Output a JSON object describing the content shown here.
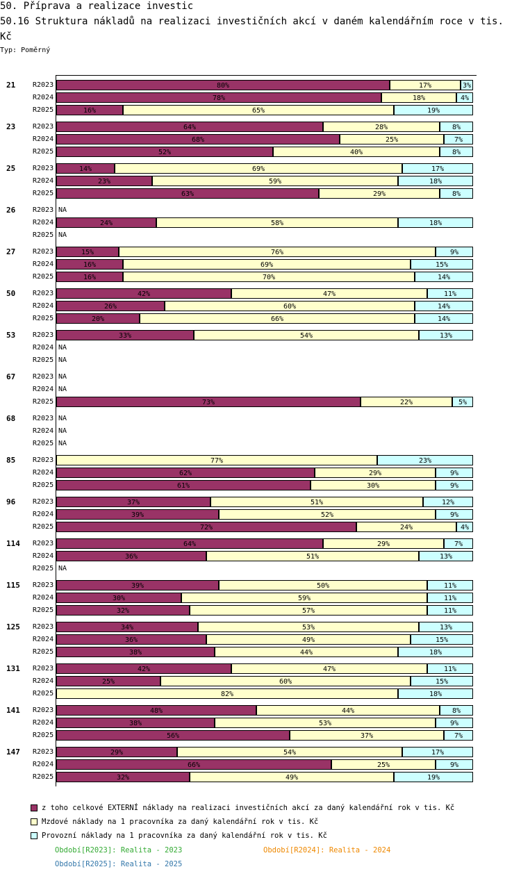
{
  "header": {
    "title": "50. Příprava a realizace investic",
    "subtitle": "50.16 Struktura nákladů na realizaci investičních akcí v daném kalendářním roce v tis. Kč",
    "type_label": "Typ: Poměrný"
  },
  "colors": {
    "externi": "#993366",
    "mzdove": "#ffffcc",
    "provozni": "#ccffff"
  },
  "legend": [
    {
      "label": "z toho celkové EXTERNÍ náklady na realizaci investičních akcí za daný kalendářní rok v tis. Kč",
      "color": "#993366"
    },
    {
      "label": "Mzdové náklady na 1 pracovníka za daný kalendářní rok v tis. Kč",
      "color": "#ffffcc"
    },
    {
      "label": "Provozní náklady na 1 pracovníka za daný kalendářní rok v tis. Kč",
      "color": "#ccffff"
    }
  ],
  "periods": [
    {
      "label": "Období[R2023]: Realita - 2023",
      "color": "#33aa33"
    },
    {
      "label": "Období[R2024]: Realita - 2024",
      "color": "#ee8800"
    },
    {
      "label": "Období[R2025]: Realita - 2025",
      "color": "#3377aa"
    }
  ],
  "chart_data": {
    "type": "bar",
    "orientation": "horizontal",
    "stacked": "percent",
    "title": "50.16 Struktura nákladů na realizaci investičních akcí v daném kalendářním roce v tis. Kč",
    "series_names": [
      "z toho celkové EXTERNÍ náklady na realizaci investičních akcí za daný kalendářní rok v tis. Kč",
      "Mzdové náklady na 1 pracovníka za daný kalendářní rok v tis. Kč",
      "Provozní náklady na 1 pracovníka za daný kalendářní rok v tis. Kč"
    ],
    "na_label": "NA",
    "xlim": [
      0,
      100
    ],
    "groups": [
      {
        "id": "21",
        "rows": [
          {
            "period": "R2023",
            "values": [
              80,
              17,
              3
            ]
          },
          {
            "period": "R2024",
            "values": [
              78,
              18,
              4
            ]
          },
          {
            "period": "R2025",
            "values": [
              16,
              65,
              19
            ]
          }
        ]
      },
      {
        "id": "23",
        "rows": [
          {
            "period": "R2023",
            "values": [
              64,
              28,
              8
            ]
          },
          {
            "period": "R2024",
            "values": [
              68,
              25,
              7
            ]
          },
          {
            "period": "R2025",
            "values": [
              52,
              40,
              8
            ]
          }
        ]
      },
      {
        "id": "25",
        "rows": [
          {
            "period": "R2023",
            "values": [
              14,
              69,
              17
            ]
          },
          {
            "period": "R2024",
            "values": [
              23,
              59,
              18
            ]
          },
          {
            "period": "R2025",
            "values": [
              63,
              29,
              8
            ]
          }
        ]
      },
      {
        "id": "26",
        "rows": [
          {
            "period": "R2023",
            "values": null
          },
          {
            "period": "R2024",
            "values": [
              24,
              58,
              18
            ]
          },
          {
            "period": "R2025",
            "values": null
          }
        ]
      },
      {
        "id": "27",
        "rows": [
          {
            "period": "R2023",
            "values": [
              15,
              76,
              9
            ]
          },
          {
            "period": "R2024",
            "values": [
              16,
              69,
              15
            ]
          },
          {
            "period": "R2025",
            "values": [
              16,
              70,
              14
            ]
          }
        ]
      },
      {
        "id": "50",
        "rows": [
          {
            "period": "R2023",
            "values": [
              42,
              47,
              11
            ]
          },
          {
            "period": "R2024",
            "values": [
              26,
              60,
              14
            ]
          },
          {
            "period": "R2025",
            "values": [
              20,
              66,
              14
            ]
          }
        ]
      },
      {
        "id": "53",
        "rows": [
          {
            "period": "R2023",
            "values": [
              33,
              54,
              13
            ]
          },
          {
            "period": "R2024",
            "values": null
          },
          {
            "period": "R2025",
            "values": null
          }
        ]
      },
      {
        "id": "67",
        "rows": [
          {
            "period": "R2023",
            "values": null
          },
          {
            "period": "R2024",
            "values": null
          },
          {
            "period": "R2025",
            "values": [
              73,
              22,
              5
            ]
          }
        ]
      },
      {
        "id": "68",
        "rows": [
          {
            "period": "R2023",
            "values": null
          },
          {
            "period": "R2024",
            "values": null
          },
          {
            "period": "R2025",
            "values": null
          }
        ]
      },
      {
        "id": "85",
        "rows": [
          {
            "period": "R2023",
            "values": [
              0,
              77,
              23
            ]
          },
          {
            "period": "R2024",
            "values": [
              62,
              29,
              9
            ]
          },
          {
            "period": "R2025",
            "values": [
              61,
              30,
              9
            ]
          }
        ]
      },
      {
        "id": "96",
        "rows": [
          {
            "period": "R2023",
            "values": [
              37,
              51,
              12
            ]
          },
          {
            "period": "R2024",
            "values": [
              39,
              52,
              9
            ]
          },
          {
            "period": "R2025",
            "values": [
              72,
              24,
              4
            ]
          }
        ]
      },
      {
        "id": "114",
        "rows": [
          {
            "period": "R2023",
            "values": [
              64,
              29,
              7
            ]
          },
          {
            "period": "R2024",
            "values": [
              36,
              51,
              13
            ]
          },
          {
            "period": "R2025",
            "values": null
          }
        ]
      },
      {
        "id": "115",
        "rows": [
          {
            "period": "R2023",
            "values": [
              39,
              50,
              11
            ]
          },
          {
            "period": "R2024",
            "values": [
              30,
              59,
              11
            ]
          },
          {
            "period": "R2025",
            "values": [
              32,
              57,
              11
            ]
          }
        ]
      },
      {
        "id": "125",
        "rows": [
          {
            "period": "R2023",
            "values": [
              34,
              53,
              13
            ]
          },
          {
            "period": "R2024",
            "values": [
              36,
              49,
              15
            ]
          },
          {
            "period": "R2025",
            "values": [
              38,
              44,
              18
            ]
          }
        ]
      },
      {
        "id": "131",
        "rows": [
          {
            "period": "R2023",
            "values": [
              42,
              47,
              11
            ]
          },
          {
            "period": "R2024",
            "values": [
              25,
              60,
              15
            ]
          },
          {
            "period": "R2025",
            "values": [
              0,
              82,
              18
            ]
          }
        ]
      },
      {
        "id": "141",
        "rows": [
          {
            "period": "R2023",
            "values": [
              48,
              44,
              8
            ]
          },
          {
            "period": "R2024",
            "values": [
              38,
              53,
              9
            ]
          },
          {
            "period": "R2025",
            "values": [
              56,
              37,
              7
            ]
          }
        ]
      },
      {
        "id": "147",
        "rows": [
          {
            "period": "R2023",
            "values": [
              29,
              54,
              17
            ]
          },
          {
            "period": "R2024",
            "values": [
              66,
              25,
              9
            ]
          },
          {
            "period": "R2025",
            "values": [
              32,
              49,
              19
            ]
          }
        ]
      }
    ]
  }
}
